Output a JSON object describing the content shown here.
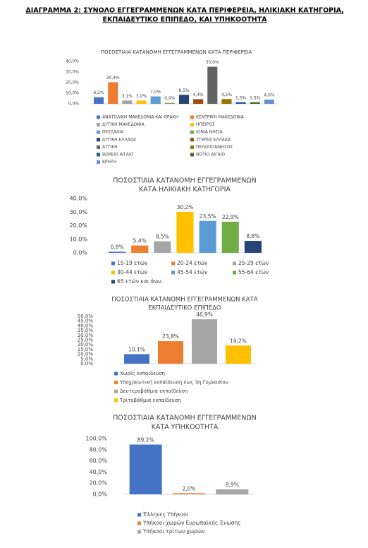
{
  "title": [
    "ΔΙΑΓΡΑΜΜΑ 2: ΣΥΝΟΛΟ ΕΓΓΕΓΡΑΜΜΕΝΩΝ ΚΑΤΑ ΠΕΡΙΦΕΡΕΙΑ, ΗΛΙΚΙΑΚΗ ΚΑΤΗΓΟΡΙΑ,",
    "ΕΚΠΑΙΔΕΥΤΙΚΟ ΕΠΙΠΕΔΟ, ΚΑΙ ΥΠΗΚΟΟΤΗΤΑ"
  ],
  "chart_data": [
    {
      "type": "bar",
      "title": [
        "ΠΟΣΟΣΤΙΑΙΑ ΚΑΤΑΝΟΜΗ ΕΓΓΕΓΡΑΜΜΕΝΩΝ ΚΑΤΑ ΠΕΡΙΦΕΡΕΙΑ"
      ],
      "categories": [
        "ΑΝΑΤΟΛΙΚΗ ΜΑΚΕΔΟΝΙΑ ΚΑΙ ΘΡΑΚΗ",
        "ΚΕΝΤΡΙΚΗ ΜΑΚΕΔΟΝΙΑ",
        "ΔΥΤΙΚΗ ΜΑΚΕΔΟΝΙΑ",
        "ΗΠΕΙΡΟΣ",
        "ΘΕΣΣΑΛΙΑ",
        "ΙΟΝΙΑ ΝΗΣΙΑ",
        "ΔΥΤΙΚΗ ΕΛΛΑΔΑ",
        "ΣΤΕΡΕΑ ΕΛΛΑΔΑ",
        "ΑΤΤΙΚΗ",
        "ΠΕΛΟΠΟΝΝΗΣΟΣ",
        "ΒΟΡΕΙΟ ΑΙΓΑΙΟ",
        "ΝΟΤΙΟ ΑΙΓΑΙΟ",
        "ΚΡΗΤΗ"
      ],
      "values": [
        6.2,
        20.4,
        3.1,
        3.0,
        7.0,
        0.9,
        8.5,
        4.4,
        35.0,
        4.5,
        1.5,
        1.5,
        4.0
      ],
      "value_labels": [
        "6,2%",
        "20,4%",
        "3,1%",
        "3,0%",
        "7,0%",
        "0,9%",
        "8,5%",
        "4,4%",
        "35,0%",
        "4,5%",
        "1,5%",
        "1,5%",
        "4,0%"
      ],
      "colors": [
        "#4472c4",
        "#ed7d31",
        "#a5a5a5",
        "#ffc000",
        "#5b9bd5",
        "#70ad47",
        "#264478",
        "#9e480e",
        "#636363",
        "#997300",
        "#255e91",
        "#43682b",
        "#698ed0"
      ],
      "ylim": [
        0,
        40
      ],
      "yticks": [
        {
          "value": 0,
          "label": "0,0%"
        },
        {
          "value": 10,
          "label": "10,0%"
        },
        {
          "value": 20,
          "label": "20,0%"
        },
        {
          "value": 30,
          "label": "30,0%"
        },
        {
          "value": 40,
          "label": "40,0%"
        }
      ]
    },
    {
      "type": "bar",
      "title": [
        "ΠΟΣΟΣΤΙΑΙΑ ΚΑΤΑΝΟΜΗ ΕΓΓΕΓΡΑΜΜΕΝΩΝ",
        "ΚΑΤΑ ΗΛΙΚΙΑΚΗ ΚΑΤΗΓΟΡΙΑ"
      ],
      "categories": [
        "15-19 ετών",
        "20-24 ετών",
        "25-29 ετών",
        "30-44 ετών",
        "45-54 ετών",
        "55-64 ετών",
        "65 ετών και άνω"
      ],
      "values": [
        0.8,
        5.4,
        8.5,
        30.2,
        23.5,
        22.9,
        8.8
      ],
      "value_labels": [
        "0,8%",
        "5,4%",
        "8,5%",
        "30,2%",
        "23,5%",
        "22,9%",
        "8,8%"
      ],
      "colors": [
        "#4472c4",
        "#ed7d31",
        "#a5a5a5",
        "#ffc000",
        "#5b9bd5",
        "#70ad47",
        "#264478"
      ],
      "ylim": [
        0,
        40
      ],
      "yticks": [
        {
          "value": 0,
          "label": "0,0%"
        },
        {
          "value": 10,
          "label": "10,0%"
        },
        {
          "value": 20,
          "label": "20,0%"
        },
        {
          "value": 30,
          "label": "30,0%"
        },
        {
          "value": 40,
          "label": "40,0%"
        }
      ]
    },
    {
      "type": "bar",
      "title": [
        "ΠΟΣΟΣΤΙΑΙΑ ΚΑΤΑΝΟΜΗ ΕΓΓΕΓΡΑΜΜΕΝΩΝ ΚΑΤΑ",
        "ΕΚΠΑΙΔΕΥΤΙΚΟ ΕΠΙΠΕΔΟ"
      ],
      "categories": [
        "Χωρίς εκπαίδευση",
        "Υποχρεωτική εκπαίδευση έως 3η Γυμνασίου",
        "Δευτεροβάθμια εκπαίδευση",
        "Τριτοβάθμια εκπαίδευση"
      ],
      "values": [
        10.1,
        23.8,
        46.9,
        19.2
      ],
      "value_labels": [
        "10,1%",
        "23,8%",
        "46,9%",
        "19,2%"
      ],
      "colors": [
        "#4472c4",
        "#ed7d31",
        "#a5a5a5",
        "#ffc000"
      ],
      "ylim": [
        0,
        50
      ],
      "yticks": [
        {
          "value": 0,
          "label": "0,0%"
        },
        {
          "value": 5,
          "label": "5,0%"
        },
        {
          "value": 10,
          "label": "10,0%"
        },
        {
          "value": 15,
          "label": "15,0%"
        },
        {
          "value": 20,
          "label": "20,0%"
        },
        {
          "value": 25,
          "label": "25,0%"
        },
        {
          "value": 30,
          "label": "30,0%"
        },
        {
          "value": 35,
          "label": "35,0%"
        },
        {
          "value": 40,
          "label": "40,0%"
        },
        {
          "value": 45,
          "label": "45,0%"
        },
        {
          "value": 50,
          "label": "50,0%"
        }
      ]
    },
    {
      "type": "bar",
      "title": [
        "ΠΟΣΟΣΤΙΑΙΑ ΚΑΤΑΝΟΜΗ  ΕΓΓΕΓΡΑΜΜΕΝΩΝ",
        "ΚΑΤΑ ΥΠΗΚΟΟΤΗΤΑ"
      ],
      "categories": [
        "Έλληνες Υπήκοοι",
        "Υπήκοοι χωρών Ευρωπαϊκής Ένωσης",
        "Υπήκοοι τρίτων χωρών"
      ],
      "values": [
        89.2,
        2.0,
        8.9
      ],
      "value_labels": [
        "89,2%",
        "2,0%",
        "8,9%"
      ],
      "colors": [
        "#4472c4",
        "#ed7d31",
        "#a5a5a5"
      ],
      "ylim": [
        0,
        100
      ],
      "yticks": [
        {
          "value": 0,
          "label": "0,0%"
        },
        {
          "value": 20,
          "label": "20,0%"
        },
        {
          "value": 40,
          "label": "40,0%"
        },
        {
          "value": 60,
          "label": "60,0%"
        },
        {
          "value": 80,
          "label": "80,0%"
        },
        {
          "value": 100,
          "label": "100,0%"
        }
      ]
    }
  ]
}
